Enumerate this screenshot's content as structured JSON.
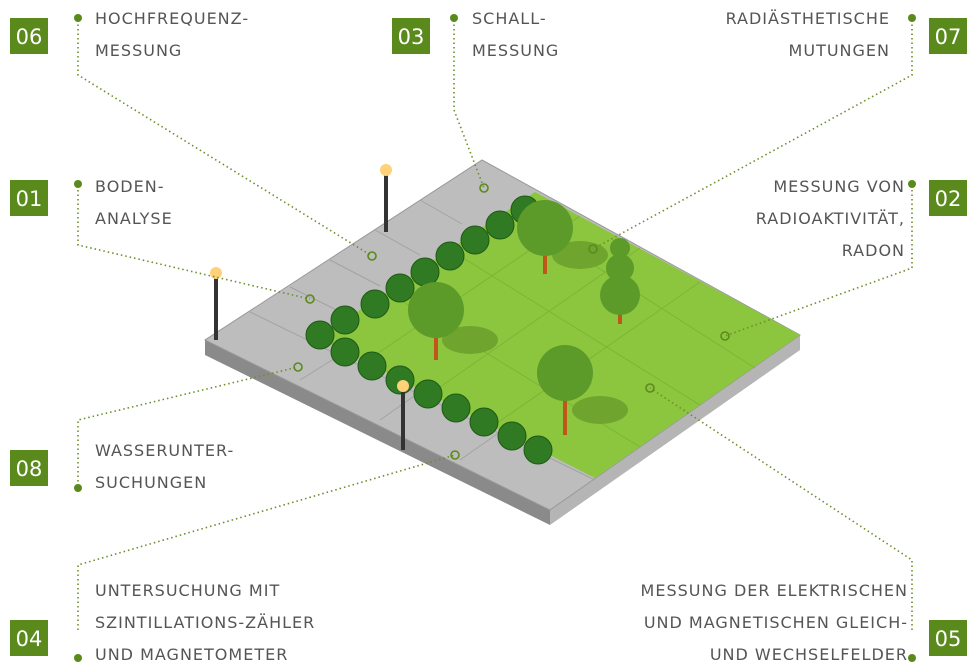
{
  "labels": [
    {
      "number": "06",
      "lines": [
        "HOCHFREQUENZ-",
        "MESSUNG"
      ]
    },
    {
      "number": "03",
      "lines": [
        "SCHALL-",
        "MESSUNG"
      ]
    },
    {
      "number": "07",
      "lines": [
        "RADIÄSTHETISCHE",
        "MUTUNGEN"
      ]
    },
    {
      "number": "01",
      "lines": [
        "BODEN-",
        "ANALYSE"
      ]
    },
    {
      "number": "02",
      "lines": [
        "MESSUNG VON",
        "RADIOAKTIVITÄT,",
        "RADON"
      ]
    },
    {
      "number": "08",
      "lines": [
        "WASSERUNTER-",
        "SUCHUNGEN"
      ]
    },
    {
      "number": "04",
      "lines": [
        "UNTERSUCHUNG MIT",
        "SZINTILLATIONS-ZÄHLER",
        "UND MAGNETOMETER"
      ]
    },
    {
      "number": "05",
      "lines": [
        "MESSUNG DER ELEKTRISCHEN",
        "UND MAGNETISCHEN GLEICH-",
        "UND WECHSELFELDER"
      ]
    }
  ]
}
